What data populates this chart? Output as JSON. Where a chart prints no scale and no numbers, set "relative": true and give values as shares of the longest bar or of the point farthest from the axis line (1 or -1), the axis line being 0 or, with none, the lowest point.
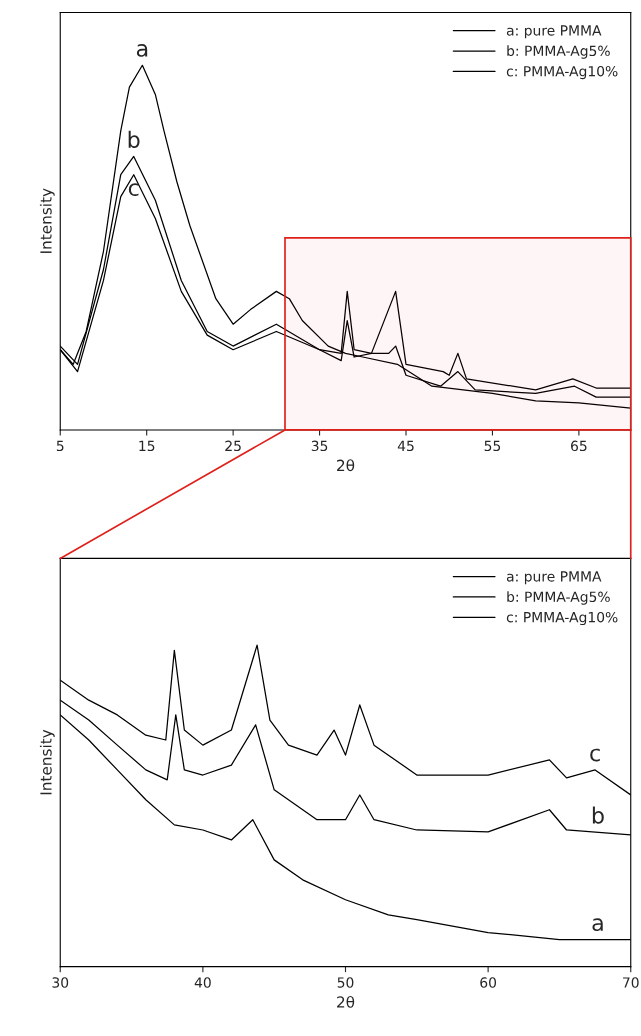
{
  "chart_data": [
    {
      "type": "line",
      "relative": true,
      "xlabel": "2θ",
      "ylabel": "Intensity",
      "xlim": [
        5,
        71
      ],
      "xticks": [
        5,
        15,
        25,
        35,
        45,
        55,
        65
      ],
      "legend": "top right",
      "grid": false,
      "marker": "none",
      "line_style": "solid",
      "bands": [
        {
          "axis": "x",
          "from": 31,
          "to": 71,
          "color": "#e0201b"
        }
      ],
      "annotations": [
        {
          "text": "a",
          "x": 14.5,
          "y": 1.0
        },
        {
          "text": "b",
          "x": 13.5,
          "y": 0.75
        },
        {
          "text": "c",
          "x": 13.5,
          "y": 0.7
        }
      ],
      "series": [
        {
          "name": "a: pure PMMA",
          "color": "#000000",
          "x": [
            5,
            6.5,
            8,
            10,
            12,
            13,
            14.5,
            16,
            17,
            18.5,
            20,
            23,
            25,
            27,
            30,
            31.5,
            33,
            36,
            38,
            40,
            44,
            48,
            55,
            60,
            65,
            71
          ],
          "values": [
            0.22,
            0.18,
            0.27,
            0.49,
            0.82,
            0.94,
            1.0,
            0.92,
            0.82,
            0.68,
            0.56,
            0.36,
            0.29,
            0.33,
            0.38,
            0.36,
            0.3,
            0.23,
            0.21,
            0.2,
            0.18,
            0.12,
            0.1,
            0.08,
            0.074,
            0.06
          ]
        },
        {
          "name": "b: PMMA-Ag5%",
          "color": "#000000",
          "x": [
            5,
            7,
            10,
            12,
            13.5,
            16,
            19,
            22,
            25,
            30,
            35,
            37.5,
            38.2,
            39,
            41,
            43,
            43.8,
            45,
            49,
            51,
            53,
            60,
            64.5,
            67,
            71
          ],
          "values": [
            0.23,
            0.18,
            0.44,
            0.7,
            0.75,
            0.63,
            0.41,
            0.27,
            0.23,
            0.29,
            0.22,
            0.19,
            0.3,
            0.2,
            0.21,
            0.21,
            0.23,
            0.15,
            0.12,
            0.16,
            0.11,
            0.1,
            0.12,
            0.09,
            0.09
          ]
        },
        {
          "name": "c: PMMA-Ag10%",
          "color": "#000000",
          "x": [
            5,
            7,
            10,
            12,
            13.5,
            16,
            19,
            22,
            25,
            30,
            35,
            37.5,
            38.2,
            39,
            41,
            43.8,
            45,
            49.3,
            50,
            51,
            52,
            60,
            64.3,
            67,
            71
          ],
          "values": [
            0.22,
            0.16,
            0.41,
            0.64,
            0.7,
            0.58,
            0.38,
            0.26,
            0.22,
            0.27,
            0.22,
            0.21,
            0.38,
            0.22,
            0.21,
            0.38,
            0.18,
            0.16,
            0.15,
            0.21,
            0.14,
            0.11,
            0.14,
            0.115,
            0.115
          ]
        }
      ]
    },
    {
      "type": "line",
      "relative": true,
      "xlabel": "2θ",
      "ylabel": "Intensity",
      "xlim": [
        30,
        70
      ],
      "xticks": [
        30,
        40,
        50,
        60,
        70
      ],
      "legend": "top right",
      "grid": false,
      "marker": "none",
      "line_style": "solid",
      "annotations": [
        {
          "text": "c",
          "x": 67.5,
          "y": 0.612
        },
        {
          "text": "b",
          "x": 67.7,
          "y": 0.418
        },
        {
          "text": "a",
          "x": 67.7,
          "y": 0.084
        }
      ],
      "series": [
        {
          "name": "a: pure PMMA",
          "color": "#000000",
          "x": [
            30,
            32,
            34,
            36,
            38,
            40,
            42,
            43.5,
            45,
            47,
            50,
            53,
            55,
            60,
            65,
            70
          ],
          "values": [
            0.783,
            0.705,
            0.612,
            0.519,
            0.441,
            0.425,
            0.394,
            0.457,
            0.332,
            0.27,
            0.208,
            0.161,
            0.146,
            0.106,
            0.084,
            0.084
          ]
        },
        {
          "name": "b: PMMA-Ag5%",
          "color": "#000000",
          "x": [
            30,
            32,
            34,
            36,
            37.5,
            38.1,
            38.7,
            40,
            42,
            43.7,
            45,
            48,
            50,
            51,
            52,
            55,
            60,
            64.3,
            65.5,
            70
          ],
          "values": [
            0.829,
            0.767,
            0.689,
            0.612,
            0.581,
            0.783,
            0.612,
            0.596,
            0.627,
            0.752,
            0.55,
            0.457,
            0.457,
            0.534,
            0.457,
            0.425,
            0.419,
            0.488,
            0.425,
            0.41
          ]
        },
        {
          "name": "c: PMMA-Ag10%",
          "color": "#000000",
          "x": [
            30,
            32,
            34,
            36,
            37.4,
            38,
            38.7,
            40,
            42,
            43.8,
            44.7,
            46,
            48,
            49.2,
            50,
            51,
            52,
            55,
            60,
            64.3,
            65.5,
            67.5,
            70
          ],
          "values": [
            0.891,
            0.829,
            0.783,
            0.72,
            0.705,
            0.984,
            0.736,
            0.689,
            0.736,
            1.0,
            0.767,
            0.689,
            0.658,
            0.736,
            0.658,
            0.814,
            0.689,
            0.596,
            0.596,
            0.643,
            0.587,
            0.612,
            0.534
          ]
        }
      ]
    }
  ]
}
